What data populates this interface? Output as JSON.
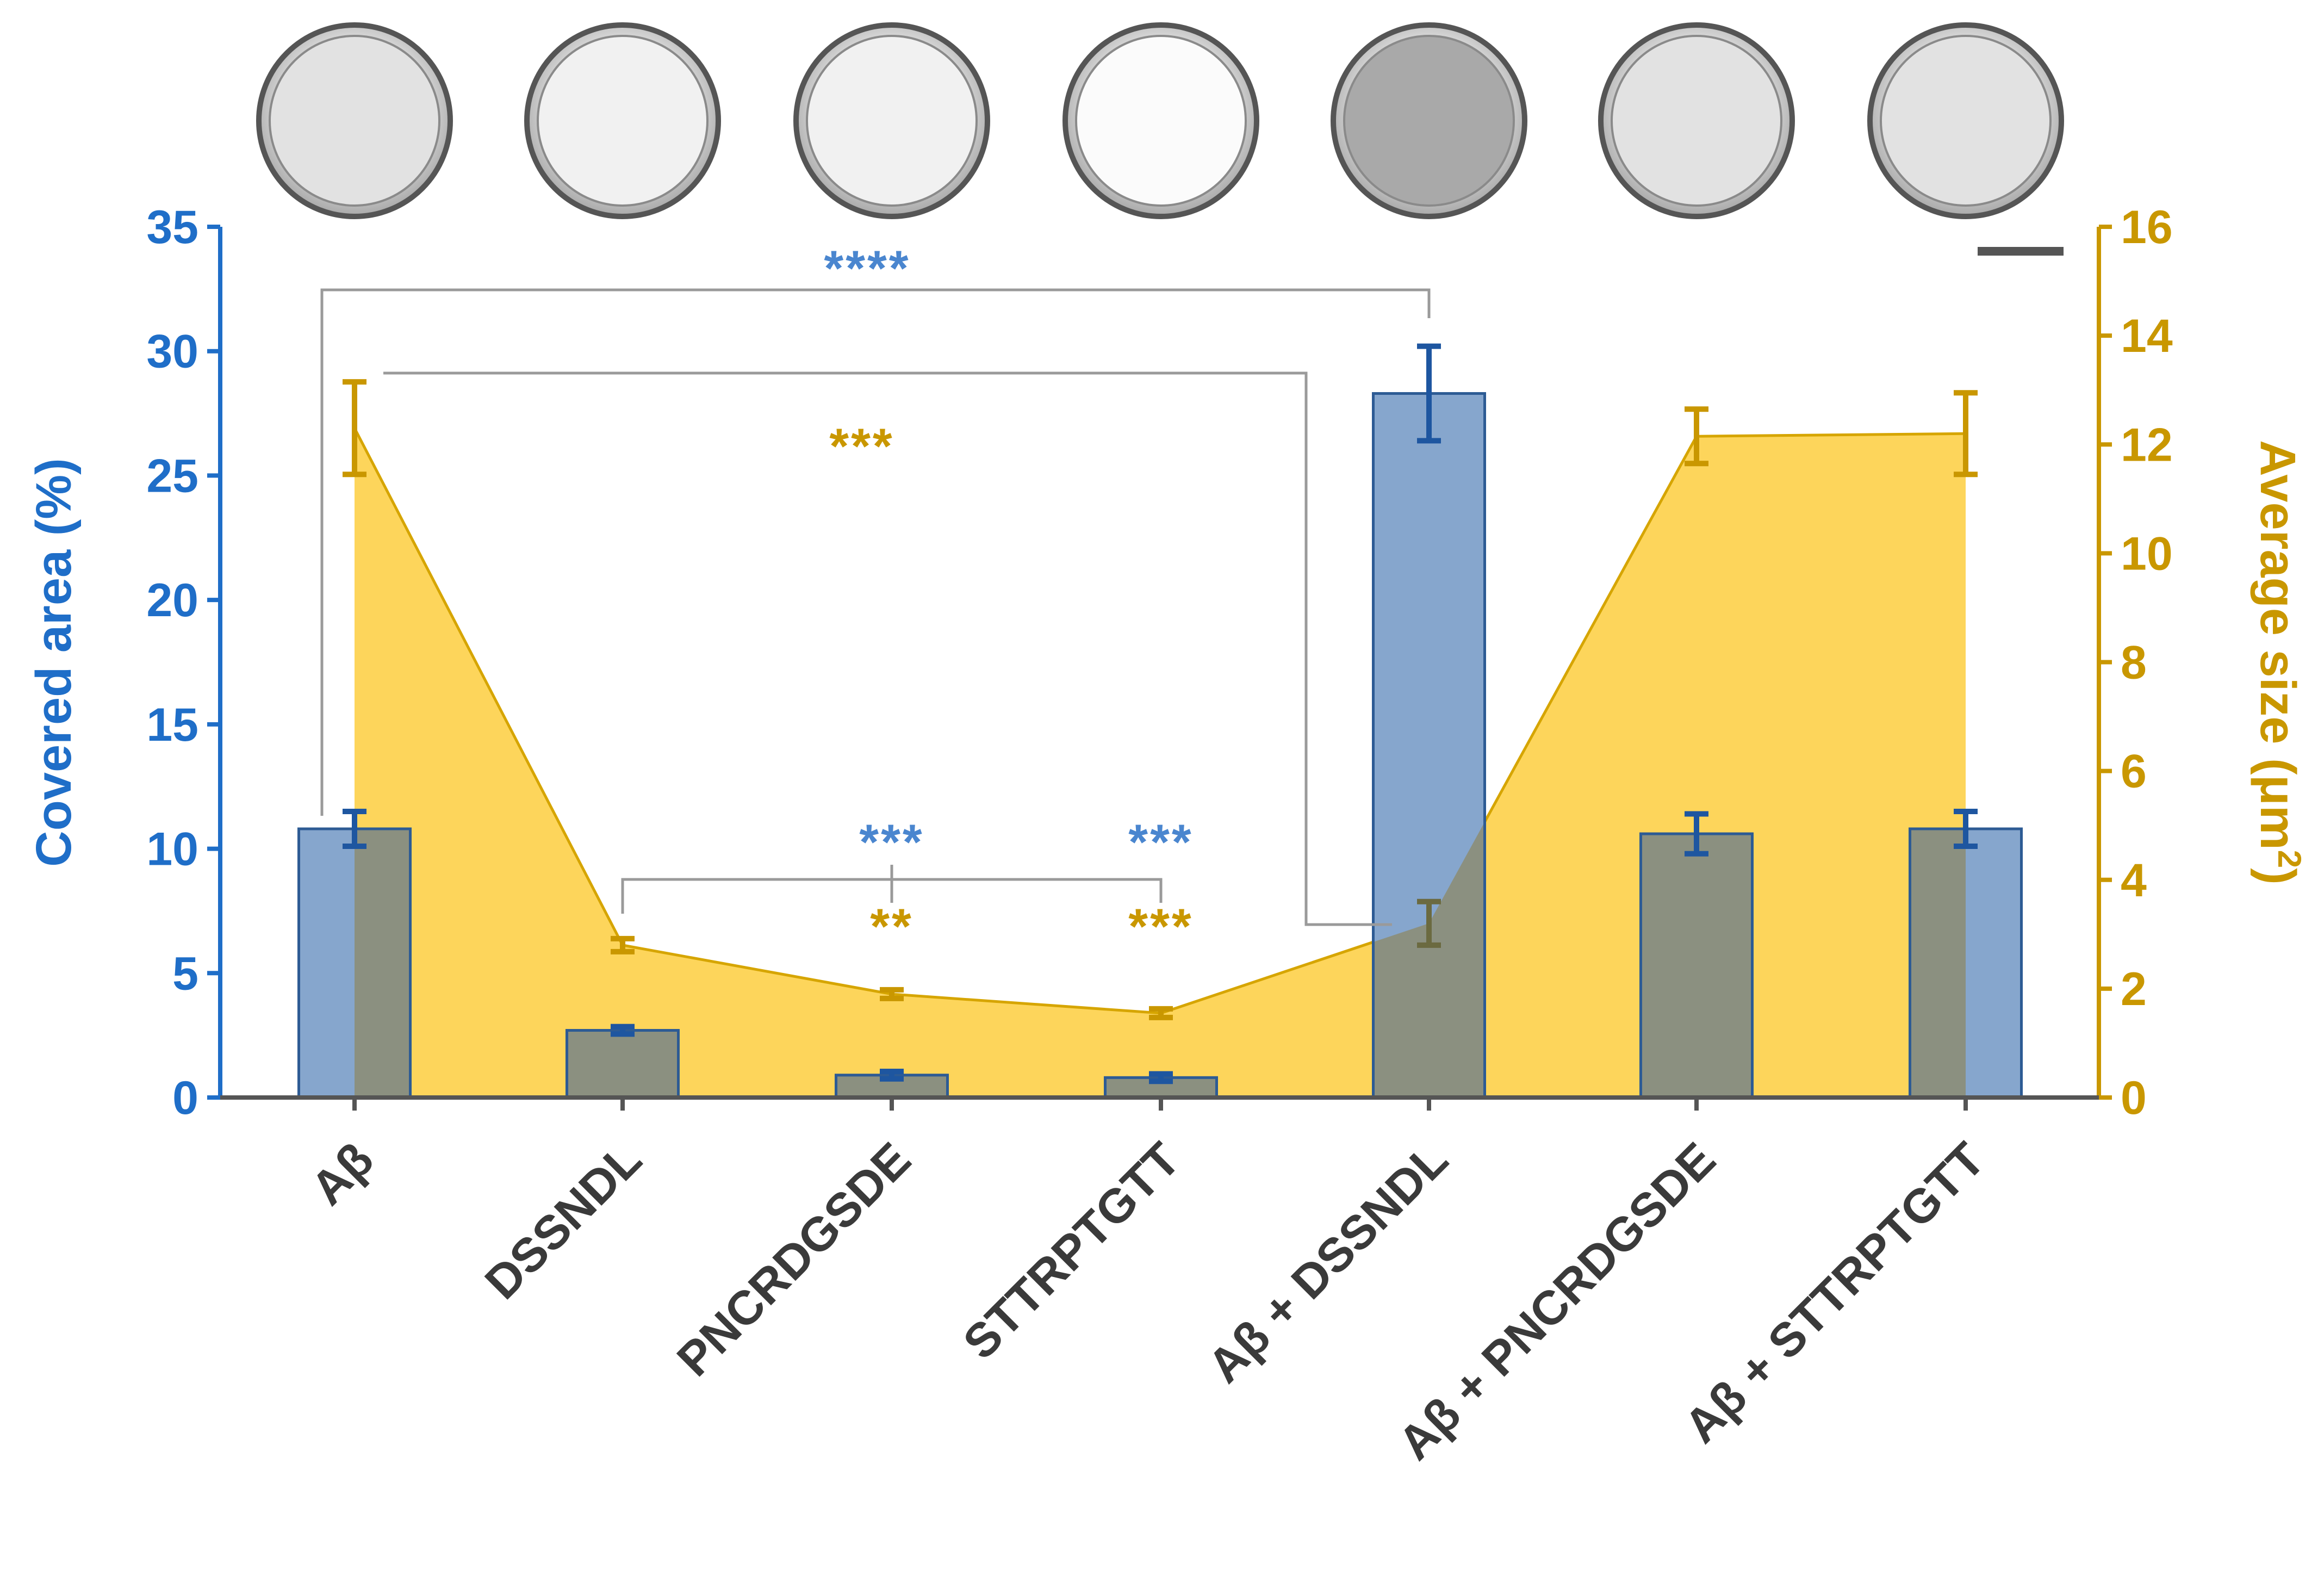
{
  "chart_data": {
    "type": "bar+area",
    "categories": [
      "Aβ",
      "DSSNDL",
      "PNCRDGSDE",
      "STTRPTGTT",
      "Aβ + DSSNDL",
      "Aβ + PNCRDGSDE",
      "Aβ + STTRPTGTT"
    ],
    "series": [
      {
        "name": "Covered area (%)",
        "axis": "left",
        "kind": "bar",
        "values": [
          10.8,
          2.7,
          0.9,
          0.8,
          28.3,
          10.6,
          10.8
        ],
        "errors": [
          0.7,
          0.15,
          0.15,
          0.15,
          1.9,
          0.8,
          0.7
        ]
      },
      {
        "name": "Average size (μm2)",
        "axis": "right",
        "kind": "area",
        "values": [
          12.3,
          2.8,
          1.9,
          1.55,
          3.2,
          12.15,
          12.2
        ],
        "errors": [
          0.85,
          0.12,
          0.08,
          0.08,
          0.4,
          0.5,
          0.75
        ]
      }
    ],
    "y_left": {
      "label": "Covered area (%)",
      "range": [
        0,
        35
      ],
      "ticks": [
        "0",
        "5",
        "10",
        "15",
        "20",
        "25",
        "30",
        "35"
      ]
    },
    "y_right": {
      "label_main": "Average size (μm",
      "label_sup": "2",
      "label_close": ")",
      "range": [
        0,
        16
      ],
      "ticks": [
        "0",
        "2",
        "4",
        "6",
        "8",
        "10",
        "12",
        "14",
        "16"
      ]
    },
    "significance": [
      {
        "text": "****",
        "color": "#4a86cf"
      },
      {
        "text": "***",
        "color": "#c99700"
      },
      {
        "text": "***",
        "color": "#4a86cf"
      },
      {
        "text": "**",
        "color": "#c99700"
      },
      {
        "text": "***",
        "color": "#4a86cf"
      },
      {
        "text": "***",
        "color": "#c99700"
      }
    ],
    "micrograph_count": 7,
    "colors": {
      "left_axis": "#1f6ec8",
      "right_axis": "#c99700",
      "bar_fill": "#86a6cd",
      "bar_stroke": "#2d5b94",
      "bar_overlap": "#8b9080",
      "area_fill": "#fdd55b",
      "area_line": "#d6a500",
      "err_left": "#1e56a0",
      "err_right": "#c99700",
      "bracket": "#9a9a9a"
    }
  }
}
